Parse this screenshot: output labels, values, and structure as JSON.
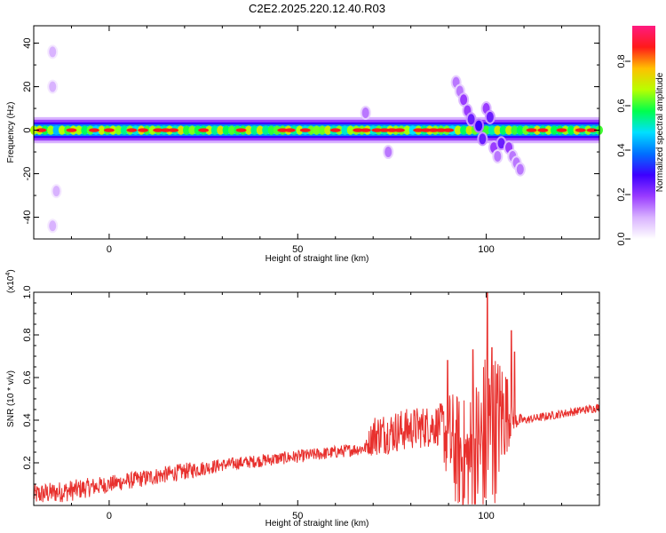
{
  "title": "C2E2.2025.220.12.40.R03",
  "chart_data": [
    {
      "type": "heatmap",
      "name": "spectrogram",
      "xlabel": "Height of straight line (km)",
      "ylabel": "Frequency (Hz)",
      "xlim": [
        -20,
        130
      ],
      "ylim": [
        -50,
        48
      ],
      "xticks": [
        "0",
        "50",
        "100"
      ],
      "yticks": [
        "40",
        "20",
        "0",
        "-20",
        "-40"
      ],
      "ridge_center_hz": 0,
      "ridge_halfwidth_hz": 6,
      "core_peaks_km": [
        -18,
        -10,
        -4,
        0,
        6,
        9,
        13,
        15,
        17,
        25,
        35,
        46,
        48,
        52,
        60,
        66,
        68,
        71,
        73,
        75,
        77,
        82,
        84,
        86,
        88,
        90,
        112,
        115,
        120,
        125,
        128
      ],
      "scatter_blobs": [
        {
          "x": 92,
          "y": 22,
          "v": 0.1
        },
        {
          "x": 93,
          "y": 18,
          "v": 0.1
        },
        {
          "x": 94,
          "y": 14,
          "v": 0.15
        },
        {
          "x": 95,
          "y": 9,
          "v": 0.15
        },
        {
          "x": 96,
          "y": 5,
          "v": 0.2
        },
        {
          "x": 98,
          "y": 2,
          "v": 0.25
        },
        {
          "x": 99,
          "y": -4,
          "v": 0.2
        },
        {
          "x": 100,
          "y": 10,
          "v": 0.15
        },
        {
          "x": 101,
          "y": 6,
          "v": 0.2
        },
        {
          "x": 102,
          "y": -8,
          "v": 0.15
        },
        {
          "x": 103,
          "y": -12,
          "v": 0.1
        },
        {
          "x": 104,
          "y": -6,
          "v": 0.2
        },
        {
          "x": 106,
          "y": -8,
          "v": 0.15
        },
        {
          "x": 107,
          "y": -12,
          "v": 0.1
        },
        {
          "x": 108,
          "y": -15,
          "v": 0.1
        },
        {
          "x": 109,
          "y": -18,
          "v": 0.1
        },
        {
          "x": 74,
          "y": -10,
          "v": 0.1
        },
        {
          "x": 68,
          "y": 8,
          "v": 0.1
        },
        {
          "x": -15,
          "y": 36,
          "v": 0.05
        },
        {
          "x": -15,
          "y": 20,
          "v": 0.05
        },
        {
          "x": -14,
          "y": -28,
          "v": 0.05
        },
        {
          "x": -15,
          "y": -44,
          "v": 0.05
        }
      ]
    },
    {
      "type": "line",
      "name": "snr",
      "xlabel": "Height of straight line (km)",
      "ylabel": "SNR (10 * v/v)",
      "multiplier": "(x10",
      "multiplier_exp": "4",
      "multiplier_close": ")",
      "xlim": [
        -20,
        130
      ],
      "ylim": [
        0,
        1.0
      ],
      "xticks": [
        "0",
        "50",
        "100"
      ],
      "yticks": [
        "0.2",
        "0.4",
        "0.6",
        "0.8",
        "1.0"
      ],
      "color": "#e8302d",
      "x": [
        -20,
        -10,
        0,
        10,
        20,
        30,
        40,
        50,
        60,
        68,
        70,
        80,
        88,
        90,
        95,
        100,
        105,
        107,
        110,
        120,
        130
      ],
      "y": [
        0.05,
        0.07,
        0.1,
        0.13,
        0.16,
        0.19,
        0.21,
        0.23,
        0.25,
        0.27,
        0.33,
        0.36,
        0.38,
        0.3,
        0.2,
        0.3,
        0.45,
        0.4,
        0.4,
        0.43,
        0.46
      ],
      "noise": [
        0.05,
        0.05,
        0.04,
        0.04,
        0.04,
        0.03,
        0.03,
        0.03,
        0.03,
        0.03,
        0.1,
        0.1,
        0.1,
        0.25,
        0.3,
        0.45,
        0.25,
        0.05,
        0.02,
        0.02,
        0.02
      ],
      "spikes": [
        {
          "x": 89.7,
          "y": 0.68
        },
        {
          "x": 96.5,
          "y": 0.73
        },
        {
          "x": 100.3,
          "y": 1.0
        },
        {
          "x": 101.5,
          "y": 0.74
        },
        {
          "x": 106.7,
          "y": 0.82
        },
        {
          "x": 107.5,
          "y": 0.72
        }
      ]
    }
  ],
  "colorbar": {
    "label": "Normalized spectral amplitude",
    "ticks": [
      "0.0",
      "0.2",
      "0.4",
      "0.6",
      "0.8"
    ],
    "range": [
      0,
      0.96
    ],
    "colors": [
      "#ffffff",
      "#d9b3ff",
      "#9a3cff",
      "#3c00ff",
      "#0070ff",
      "#00e0ff",
      "#00ff4c",
      "#b8ff00",
      "#ffc000",
      "#ff1a1a",
      "#ff1a80"
    ]
  }
}
